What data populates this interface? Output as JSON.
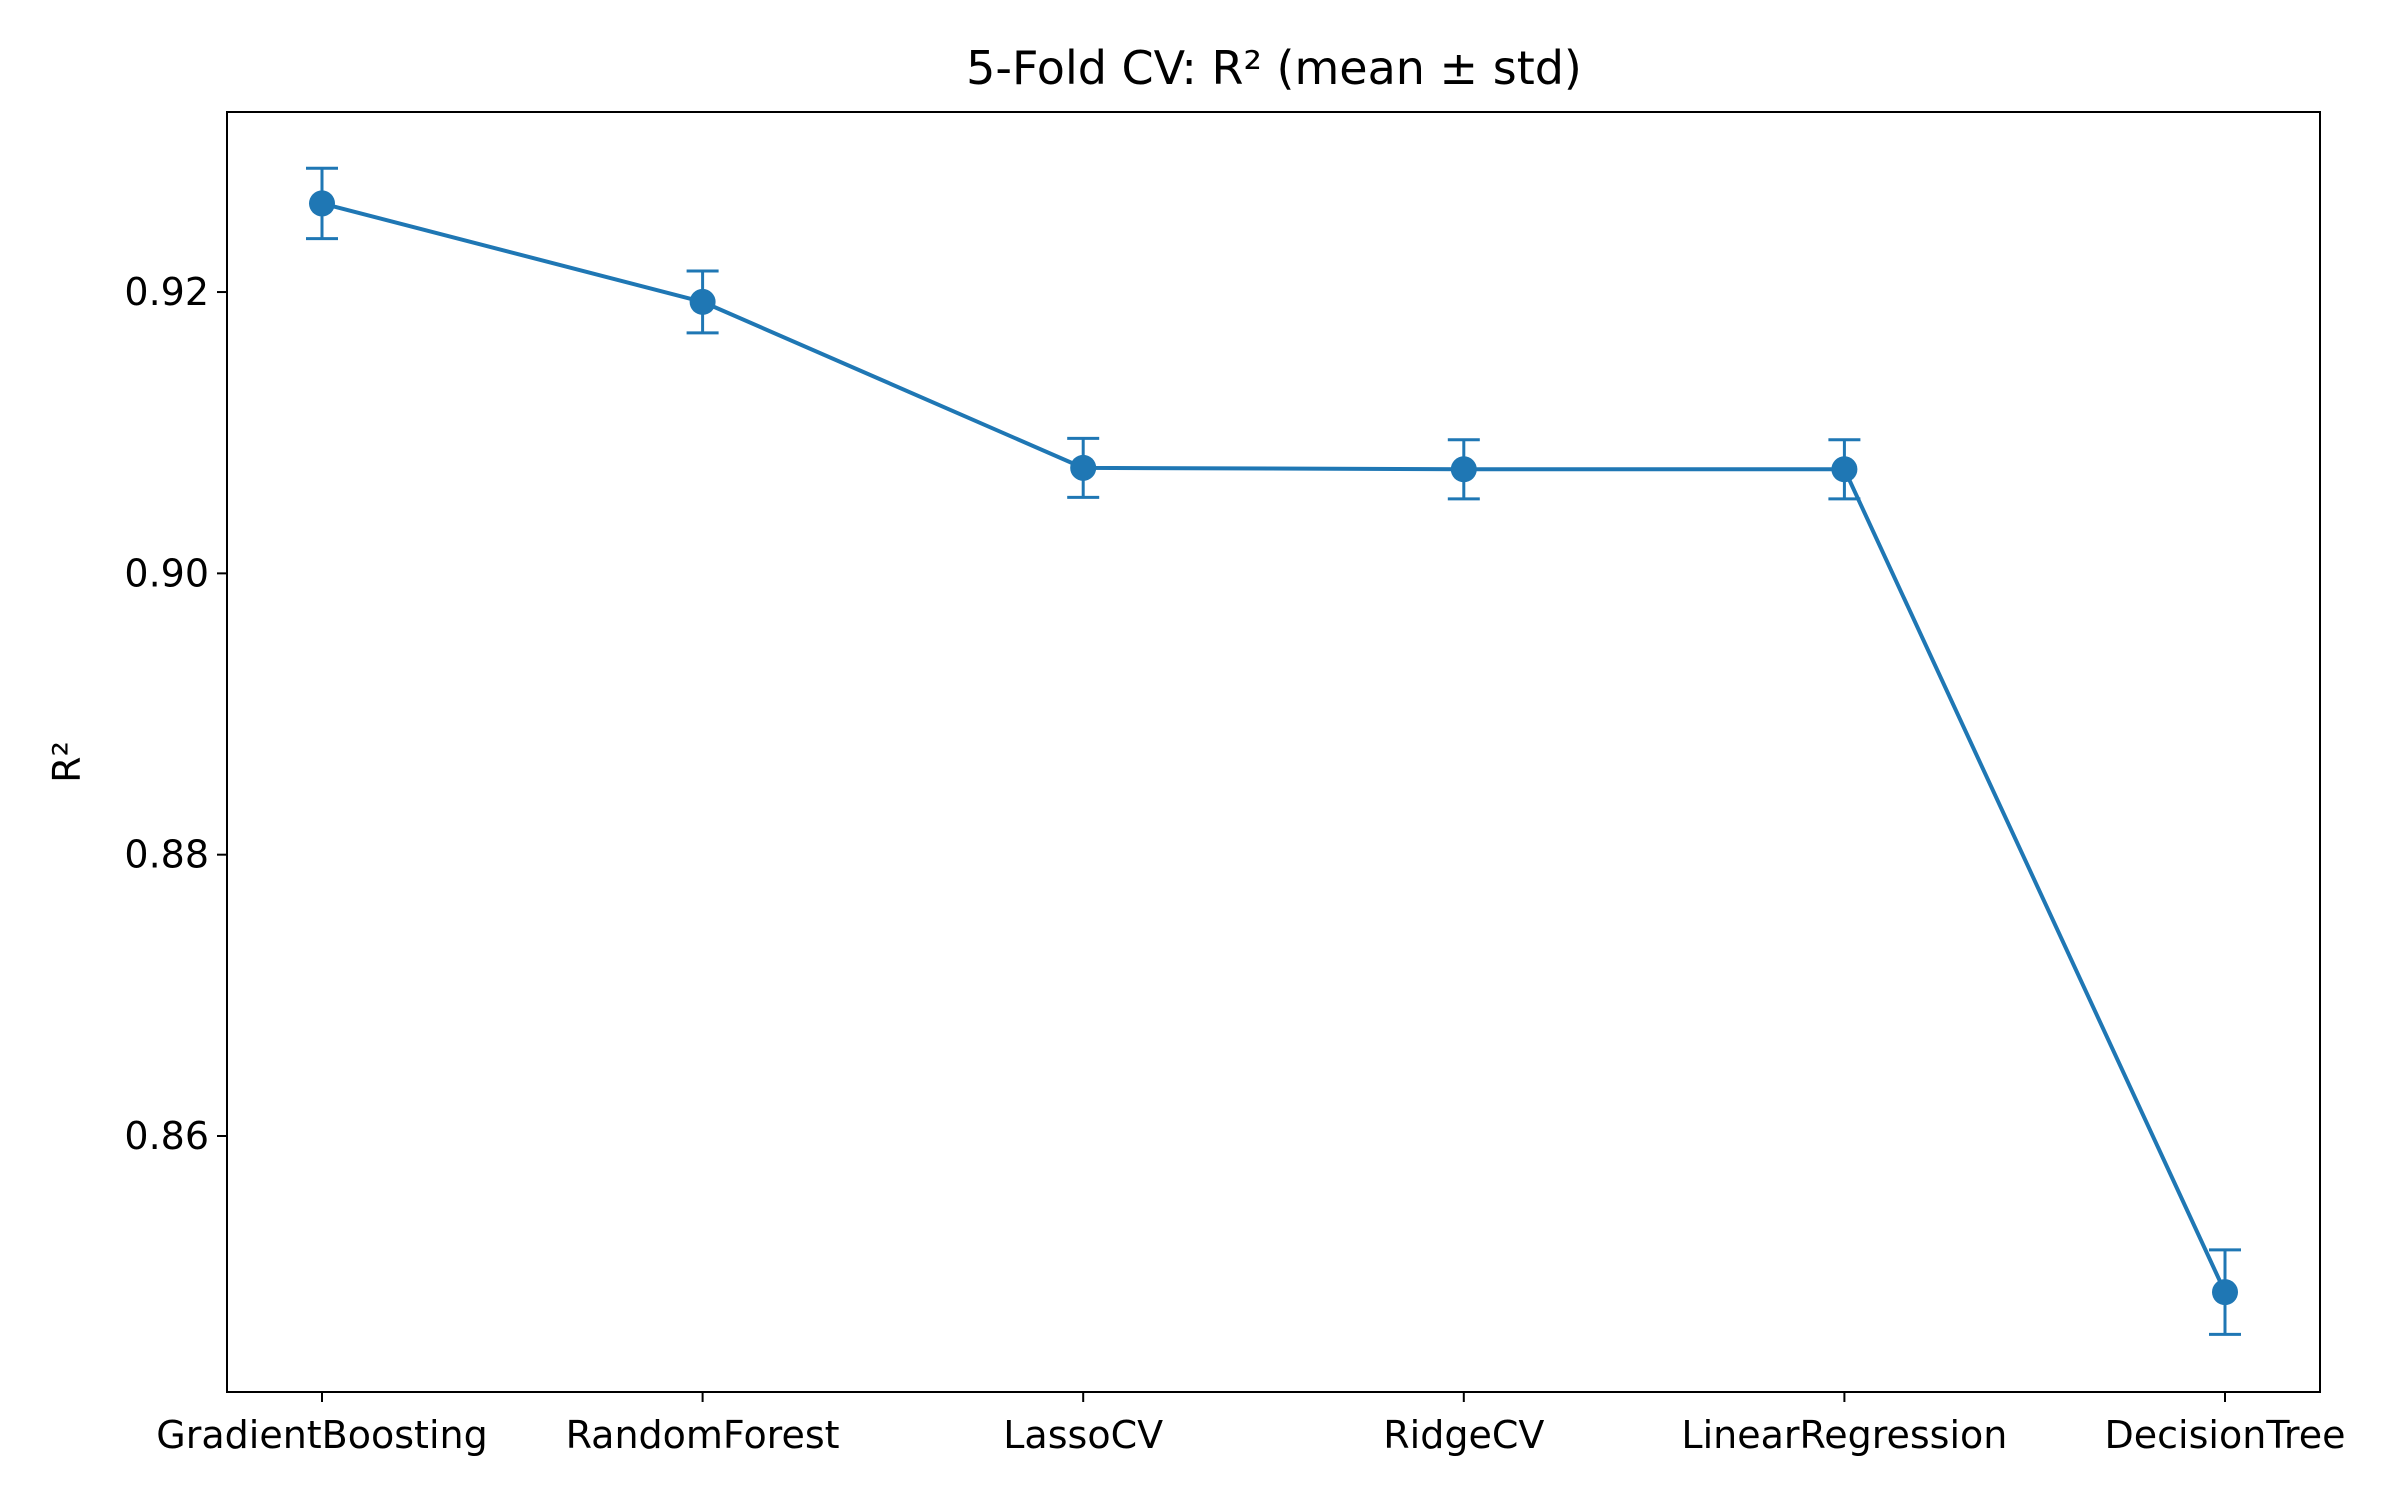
{
  "chart_data": {
    "type": "line",
    "title": "5-Fold CV: R² (mean ± std)",
    "xlabel": "",
    "ylabel": "R²",
    "categories": [
      "GradientBoosting",
      "RandomForest",
      "LassoCV",
      "RidgeCV",
      "LinearRegression",
      "DecisionTree"
    ],
    "series": [
      {
        "values": [
          0.9263,
          0.9193,
          0.9075,
          0.9074,
          0.9074,
          0.8489
        ],
        "errors": [
          0.0025,
          0.0022,
          0.0021,
          0.0021,
          0.0021,
          0.003
        ]
      }
    ],
    "ylim": [
      0.8418,
      0.9328
    ],
    "yticks": [
      0.86,
      0.88,
      0.9,
      0.92
    ],
    "ytick_labels": [
      "0.86",
      "0.88",
      "0.90",
      "0.92"
    ],
    "grid": false,
    "color": "#1f77b4"
  }
}
